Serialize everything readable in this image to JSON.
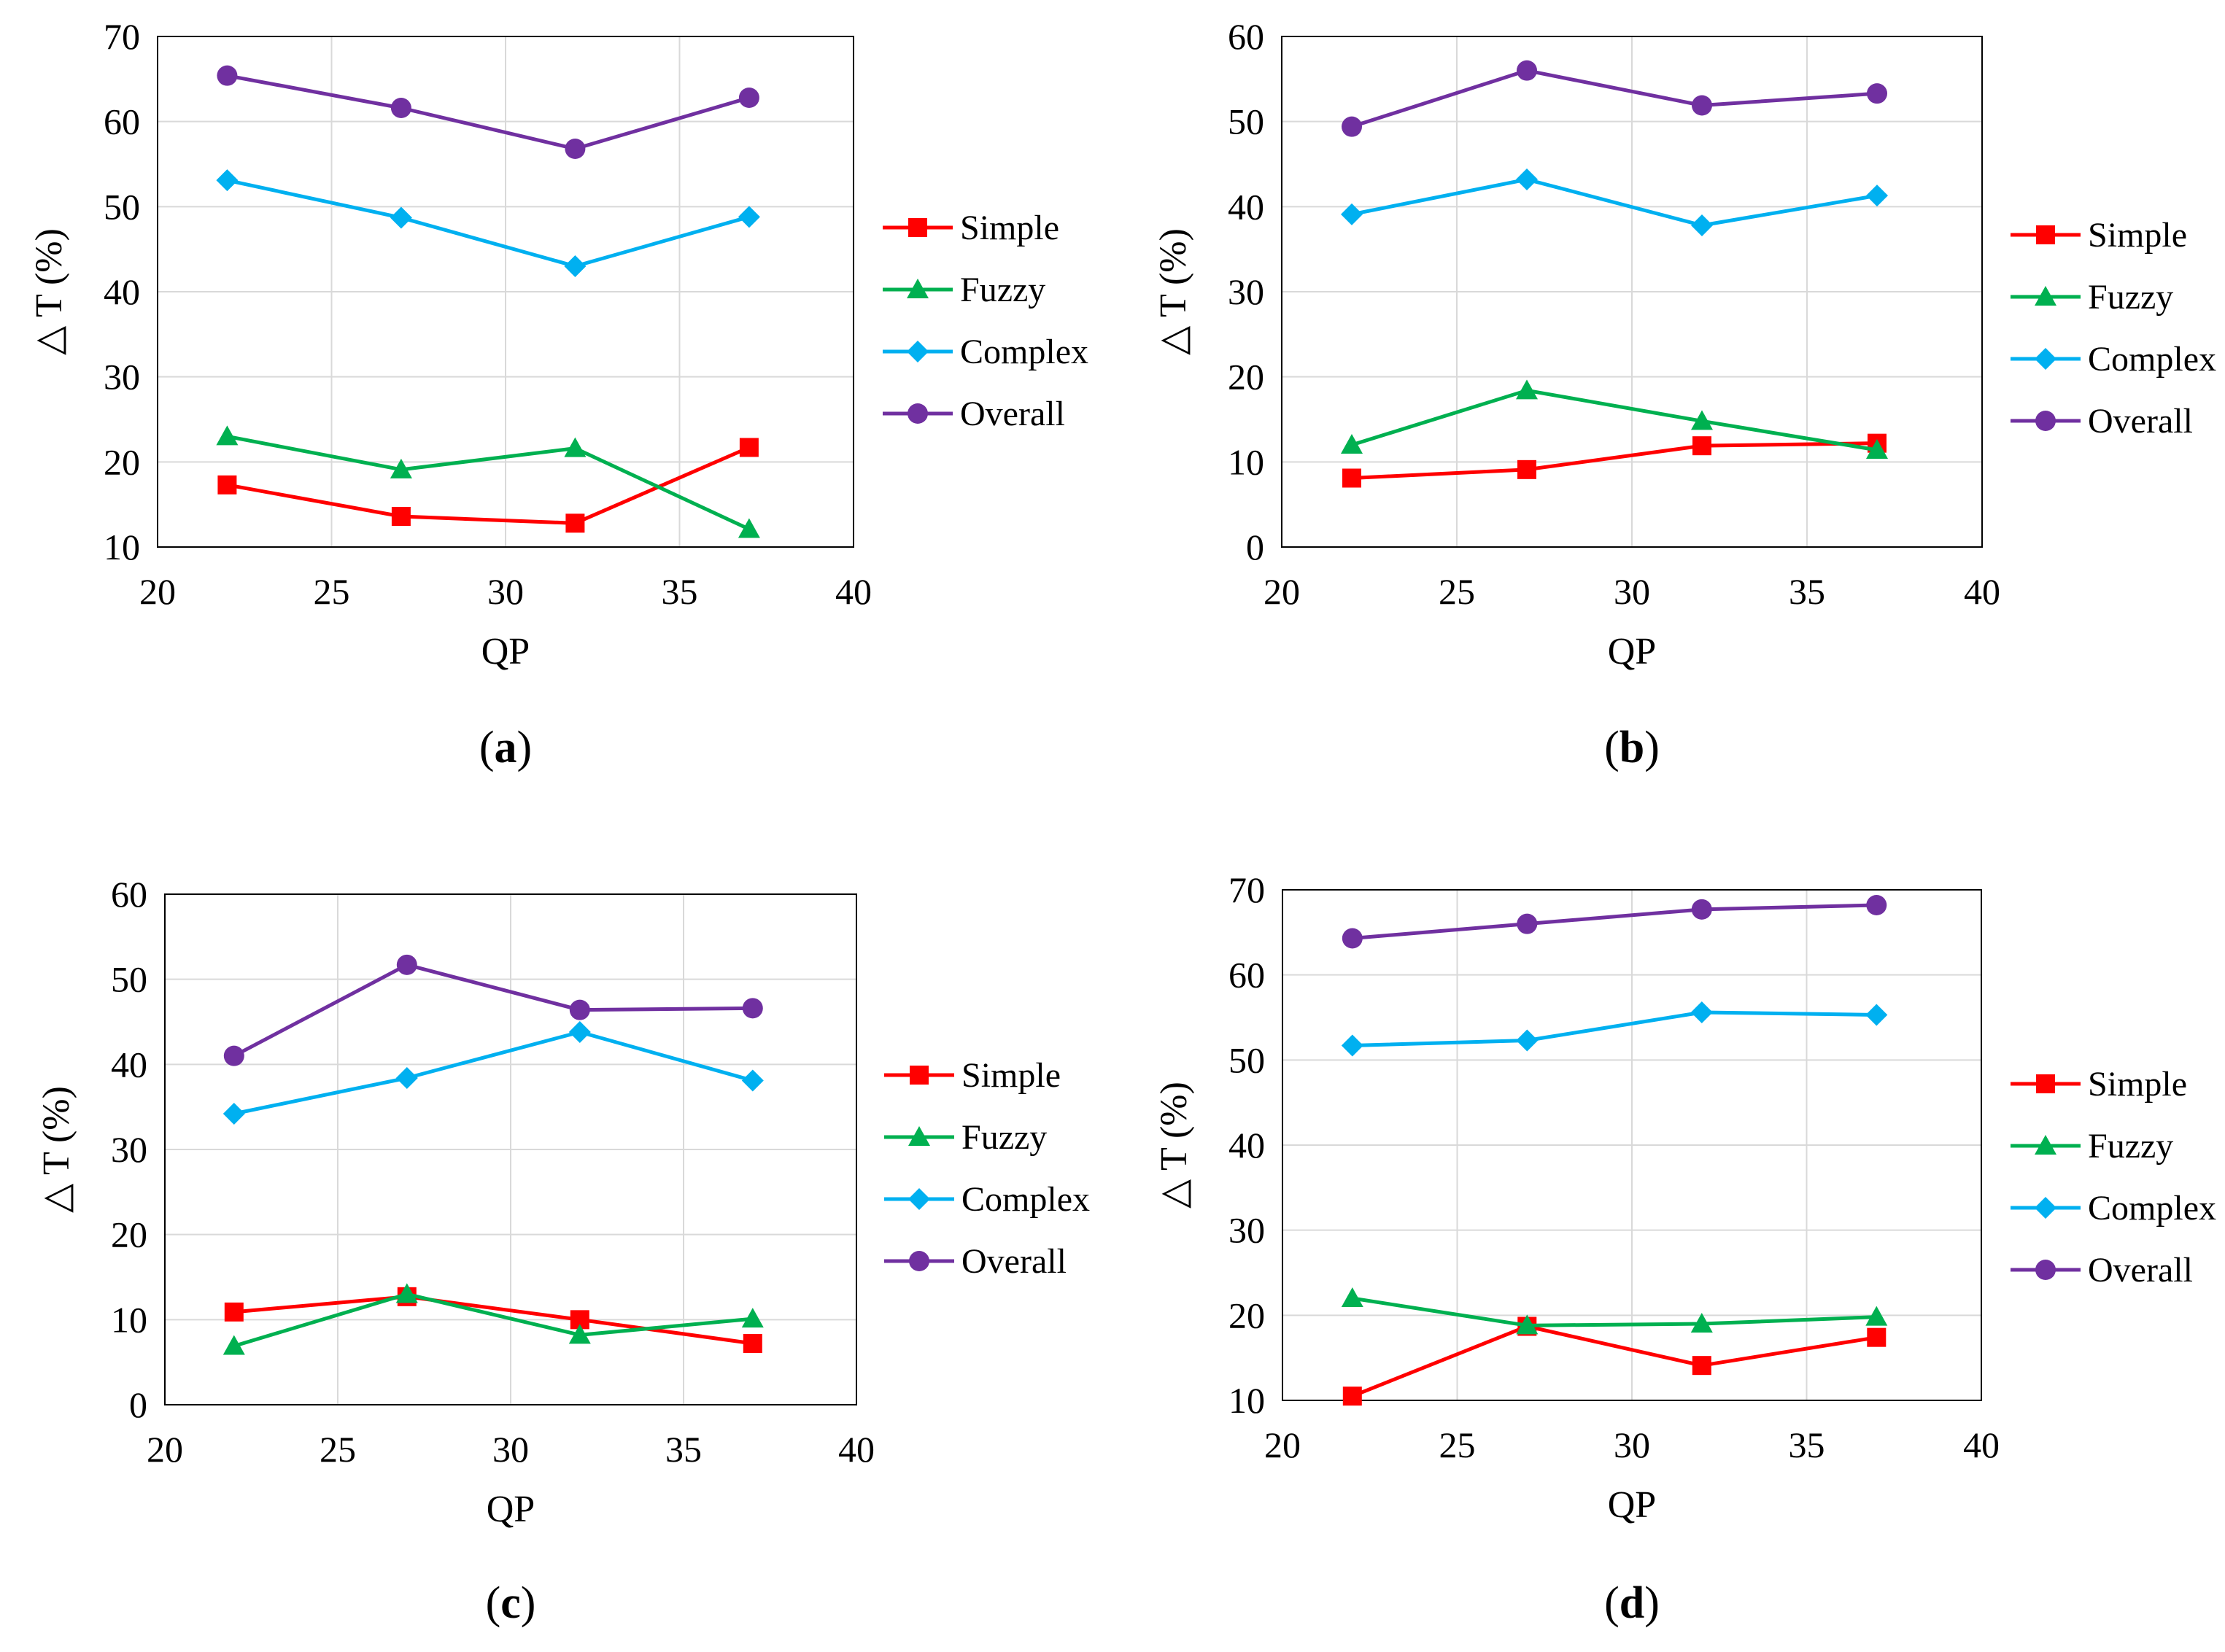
{
  "figure": {
    "legend_entries": [
      "Simple",
      "Fuzzy",
      "Complex",
      "Overall"
    ],
    "series_colors": {
      "Simple": "#ff0000",
      "Fuzzy": "#00b050",
      "Complex": "#00b0f0",
      "Overall": "#7030a0"
    },
    "series_markers": {
      "Simple": "square",
      "Fuzzy": "triangle",
      "Complex": "diamond",
      "Overall": "circle"
    }
  },
  "chart_data": [
    {
      "type": "line",
      "panel_label": "(a)",
      "panel_letter": "a",
      "xlabel": "QP",
      "ylabel": "△ T (%)",
      "xlim": [
        20,
        40
      ],
      "ylim": [
        10,
        70
      ],
      "xticks": [
        20,
        25,
        30,
        35,
        40
      ],
      "yticks": [
        10,
        20,
        30,
        40,
        50,
        60,
        70
      ],
      "grid": true,
      "legend_position": "right",
      "x": [
        22,
        27,
        32,
        37
      ],
      "series": [
        {
          "name": "Simple",
          "values": [
            17.3,
            13.6,
            12.8,
            21.7
          ]
        },
        {
          "name": "Fuzzy",
          "values": [
            23.0,
            19.1,
            21.6,
            12.1
          ]
        },
        {
          "name": "Complex",
          "values": [
            53.1,
            48.7,
            43.0,
            48.8
          ]
        },
        {
          "name": "Overall",
          "values": [
            65.4,
            61.6,
            56.8,
            62.8
          ]
        }
      ]
    },
    {
      "type": "line",
      "panel_label": "(b)",
      "panel_letter": "b",
      "xlabel": "QP",
      "ylabel": "△ T (%)",
      "xlim": [
        20,
        40
      ],
      "ylim": [
        0,
        60
      ],
      "xticks": [
        20,
        25,
        30,
        35,
        40
      ],
      "yticks": [
        0,
        10,
        20,
        30,
        40,
        50,
        60
      ],
      "grid": true,
      "legend_position": "right",
      "x": [
        22,
        27,
        32,
        37
      ],
      "series": [
        {
          "name": "Simple",
          "values": [
            8.1,
            9.1,
            11.9,
            12.2
          ]
        },
        {
          "name": "Fuzzy",
          "values": [
            12.0,
            18.4,
            14.8,
            11.4
          ]
        },
        {
          "name": "Complex",
          "values": [
            39.1,
            43.2,
            37.8,
            41.3
          ]
        },
        {
          "name": "Overall",
          "values": [
            49.4,
            56.0,
            51.9,
            53.3
          ]
        }
      ]
    },
    {
      "type": "line",
      "panel_label": "(c)",
      "panel_letter": "c",
      "xlabel": "QP",
      "ylabel": "△ T (%)",
      "xlim": [
        20,
        40
      ],
      "ylim": [
        0,
        60
      ],
      "xticks": [
        20,
        25,
        30,
        35,
        40
      ],
      "yticks": [
        0,
        10,
        20,
        30,
        40,
        50,
        60
      ],
      "grid": true,
      "legend_position": "right",
      "x": [
        22,
        27,
        32,
        37
      ],
      "series": [
        {
          "name": "Simple",
          "values": [
            10.9,
            12.7,
            10.0,
            7.2
          ]
        },
        {
          "name": "Fuzzy",
          "values": [
            6.9,
            13.0,
            8.2,
            10.1
          ]
        },
        {
          "name": "Complex",
          "values": [
            34.2,
            38.4,
            43.8,
            38.1
          ]
        },
        {
          "name": "Overall",
          "values": [
            41.0,
            51.7,
            46.4,
            46.6
          ]
        }
      ]
    },
    {
      "type": "line",
      "panel_label": "(d)",
      "panel_letter": "d",
      "xlabel": "QP",
      "ylabel": "△ T (%)",
      "xlim": [
        20,
        40
      ],
      "ylim": [
        10,
        70
      ],
      "xticks": [
        20,
        25,
        30,
        35,
        40
      ],
      "yticks": [
        10,
        20,
        30,
        40,
        50,
        60,
        70
      ],
      "grid": true,
      "legend_position": "right",
      "x": [
        22,
        27,
        32,
        37
      ],
      "series": [
        {
          "name": "Simple",
          "values": [
            10.5,
            18.7,
            14.1,
            17.4
          ]
        },
        {
          "name": "Fuzzy",
          "values": [
            22.0,
            18.8,
            19.0,
            19.8
          ]
        },
        {
          "name": "Complex",
          "values": [
            51.7,
            52.3,
            55.6,
            55.3
          ]
        },
        {
          "name": "Overall",
          "values": [
            64.3,
            66.0,
            67.7,
            68.2
          ]
        }
      ]
    }
  ]
}
